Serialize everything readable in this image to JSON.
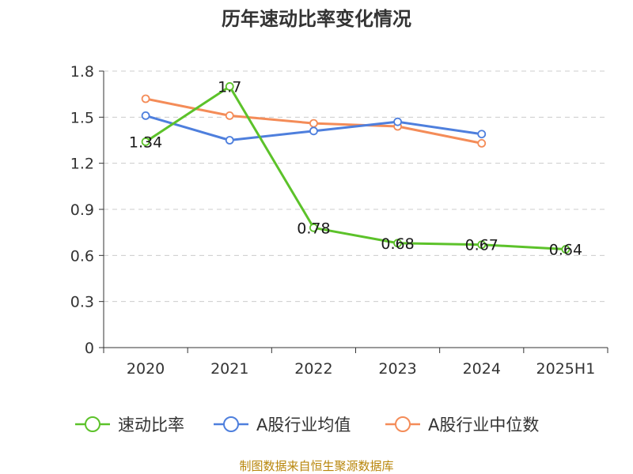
{
  "chart_data": {
    "type": "line",
    "title": "历年速动比率变化情况",
    "categories": [
      "2020",
      "2021",
      "2022",
      "2023",
      "2024",
      "2025H1"
    ],
    "ylim": [
      0,
      1.8
    ],
    "yticks": [
      "0",
      "0.3",
      "0.6",
      "0.9",
      "1.2",
      "1.5",
      "1.8"
    ],
    "grid": true,
    "legend_position": "bottom",
    "series": [
      {
        "name": "速动比率",
        "color": "#5cc22a",
        "values": [
          1.34,
          1.7,
          0.78,
          0.68,
          0.67,
          0.64
        ],
        "labels": [
          "1.34",
          "1.7",
          "0.78",
          "0.68",
          "0.67",
          "0.64"
        ]
      },
      {
        "name": "A股行业均值",
        "color": "#4e7fdd",
        "values": [
          1.51,
          1.35,
          1.41,
          1.47,
          1.39,
          null
        ]
      },
      {
        "name": "A股行业中位数",
        "color": "#f48c58",
        "values": [
          1.62,
          1.51,
          1.46,
          1.44,
          1.33,
          null
        ]
      }
    ],
    "source": "制图数据来自恒生聚源数据库"
  }
}
